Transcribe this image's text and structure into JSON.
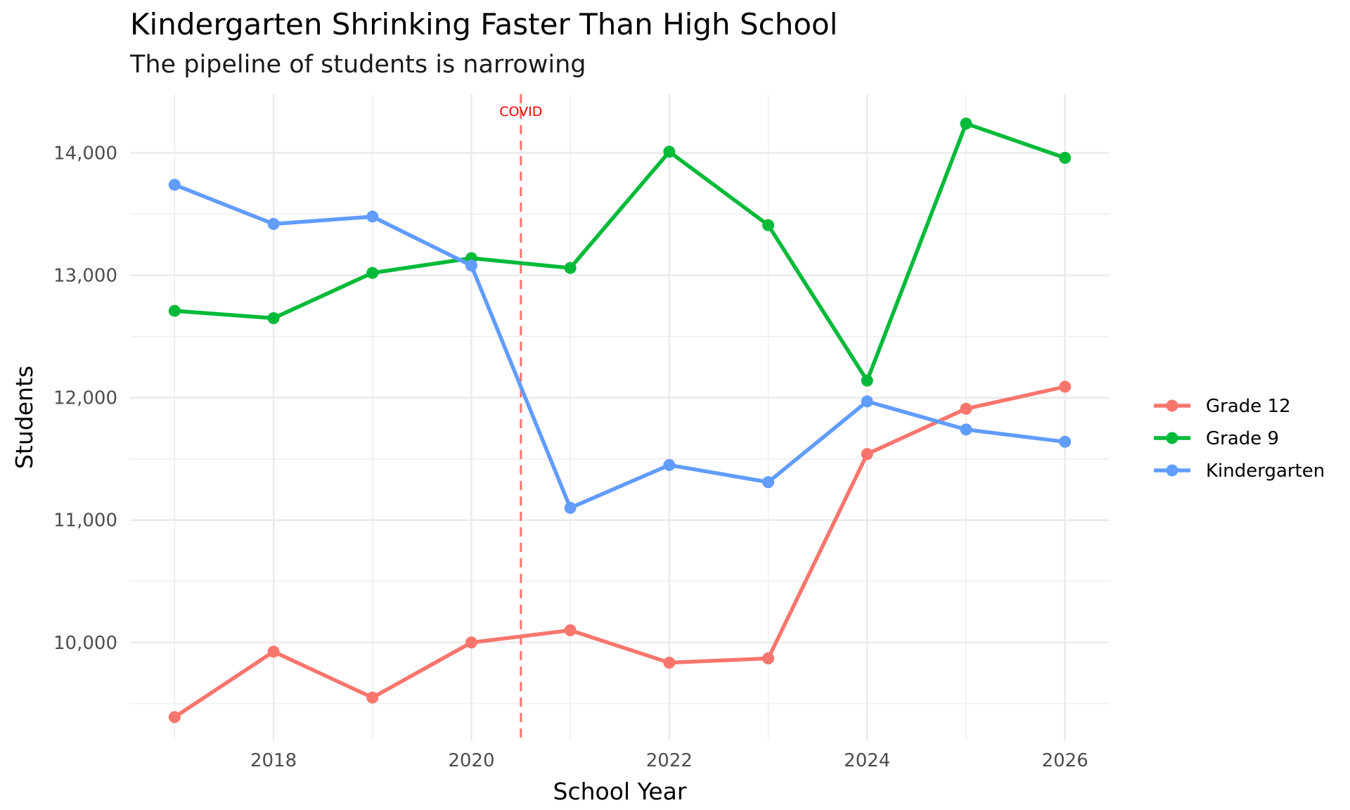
{
  "chart_data": {
    "type": "line",
    "title": "Kindergarten Shrinking Faster Than High School",
    "subtitle": "The pipeline of students is narrowing",
    "xlabel": "School Year",
    "ylabel": "Students",
    "x": [
      2017,
      2018,
      2019,
      2020,
      2021,
      2022,
      2023,
      2024,
      2025,
      2026
    ],
    "x_ticks": [
      2018,
      2020,
      2022,
      2024,
      2026
    ],
    "x_tick_labels": [
      "2018",
      "2020",
      "2022",
      "2024",
      "2026"
    ],
    "y_ticks": [
      10000,
      11000,
      12000,
      13000,
      14000
    ],
    "y_tick_labels": [
      "10,000",
      "11,000",
      "12,000",
      "13,000",
      "14,000"
    ],
    "xlim": [
      2016.55,
      2026.45
    ],
    "ylim": [
      9200,
      14480
    ],
    "grid": true,
    "legend_position": "right",
    "series": [
      {
        "name": "Grade 12",
        "color": "#F8766D",
        "values": [
          9390,
          9925,
          9550,
          10000,
          10100,
          9835,
          9870,
          11540,
          11910,
          12090
        ]
      },
      {
        "name": "Grade 9",
        "color": "#00BA38",
        "values": [
          12710,
          12650,
          13020,
          13140,
          13060,
          14010,
          13410,
          12140,
          14240,
          13960
        ]
      },
      {
        "name": "Kindergarten",
        "color": "#619CFF",
        "values": [
          13740,
          13420,
          13480,
          13080,
          11100,
          11450,
          11310,
          11970,
          11740,
          11640
        ]
      }
    ],
    "annotations": [
      {
        "type": "vline",
        "x": 2020.5,
        "label": "COVID",
        "color": "#F8766D",
        "label_color": "#FF0000"
      }
    ]
  }
}
